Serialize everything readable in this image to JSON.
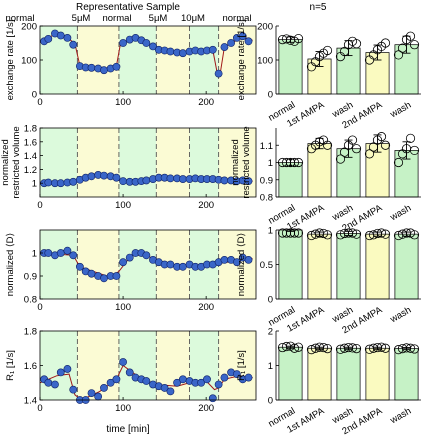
{
  "figure": {
    "left_title": "Representative Sample",
    "right_title": "n=5",
    "phase_labels": [
      "normal",
      "5μM",
      "normal",
      "5μM",
      "10μM",
      "normal"
    ],
    "left_xlabel": "time [min]"
  },
  "colors": {
    "normal_band": "#dcfadc",
    "ampa_band": "#fbfbd4",
    "marker_fill": "#3a66c8",
    "marker_edge": "#0d1f66",
    "fit_line": "#a01818",
    "divider": "#555555",
    "bar_green": "#c6f2c6",
    "bar_yellow": "#fafac0"
  },
  "chart_data": [
    {
      "type": "scatter",
      "ylabel": "exchange rate [1/s]",
      "xlim": [
        0,
        260
      ],
      "ylim": [
        0,
        200
      ],
      "xticks": [
        "0",
        "100",
        "200"
      ],
      "xtick_values": [
        0,
        100,
        200
      ],
      "yticks": [
        "0",
        "100",
        "200"
      ],
      "ytick_values": [
        0,
        100,
        200
      ],
      "phase_boundaries": [
        45,
        95,
        140,
        180,
        215
      ],
      "x": [
        5,
        10,
        18,
        25,
        33,
        40,
        48,
        55,
        62,
        70,
        77,
        85,
        92,
        100,
        108,
        115,
        122,
        128,
        136,
        143,
        150,
        157,
        165,
        172,
        180,
        187,
        194,
        201,
        208,
        215,
        222,
        230,
        237,
        244,
        251
      ],
      "y": [
        155,
        162,
        178,
        172,
        165,
        145,
        82,
        78,
        77,
        75,
        70,
        75,
        80,
        150,
        160,
        165,
        158,
        150,
        140,
        130,
        128,
        125,
        122,
        120,
        125,
        128,
        125,
        128,
        130,
        60,
        138,
        150,
        165,
        170,
        155
      ],
      "fit": [
        [
          0,
          152
        ],
        [
          18,
          176
        ],
        [
          33,
          166
        ],
        [
          42,
          148
        ],
        [
          48,
          83
        ],
        [
          85,
          76
        ],
        [
          92,
          82
        ],
        [
          97,
          150
        ],
        [
          115,
          164
        ],
        [
          136,
          141
        ],
        [
          150,
          128
        ],
        [
          172,
          121
        ],
        [
          208,
          129
        ],
        [
          213,
          65
        ],
        [
          217,
          62
        ],
        [
          222,
          138
        ],
        [
          244,
          168
        ],
        [
          256,
          158
        ]
      ]
    },
    {
      "type": "scatter",
      "ylabel": "normalized restricted volume",
      "xlim": [
        0,
        260
      ],
      "ylim": [
        0.8,
        1.8
      ],
      "xticks": [
        "0",
        "100",
        "200"
      ],
      "xtick_values": [
        0,
        100,
        200
      ],
      "yticks": [
        "1",
        "1.2",
        "1.4",
        "1.6",
        "1.8"
      ],
      "ytick_values": [
        1,
        1.2,
        1.4,
        1.6,
        1.8
      ],
      "phase_boundaries": [
        45,
        95,
        140,
        180,
        215
      ],
      "x": [
        5,
        10,
        18,
        25,
        33,
        40,
        48,
        55,
        62,
        70,
        77,
        85,
        92,
        100,
        108,
        115,
        122,
        128,
        136,
        143,
        150,
        157,
        165,
        172,
        180,
        187,
        194,
        201,
        208,
        215,
        222,
        230,
        237,
        244,
        251
      ],
      "y": [
        1.0,
        1.01,
        1.0,
        1.0,
        1.01,
        1.02,
        1.05,
        1.08,
        1.1,
        1.12,
        1.11,
        1.1,
        1.08,
        1.03,
        1.02,
        1.02,
        1.03,
        1.04,
        1.06,
        1.08,
        1.08,
        1.07,
        1.07,
        1.06,
        1.06,
        1.07,
        1.06,
        1.06,
        1.06,
        1.05,
        1.04,
        1.04,
        1.03,
        1.04,
        1.03
      ],
      "fit": [
        [
          0,
          1.0
        ],
        [
          40,
          1.02
        ],
        [
          70,
          1.11
        ],
        [
          95,
          1.04
        ],
        [
          120,
          1.03
        ],
        [
          145,
          1.08
        ],
        [
          180,
          1.06
        ],
        [
          215,
          1.05
        ],
        [
          256,
          1.03
        ]
      ]
    },
    {
      "type": "scatter",
      "ylabel": "normalized ⟨D⟩",
      "xlim": [
        0,
        260
      ],
      "ylim": [
        0.8,
        1.1
      ],
      "xticks": [
        "0",
        "100",
        "200"
      ],
      "xtick_values": [
        0,
        100,
        200
      ],
      "yticks": [
        "0.8",
        "0.9",
        "1"
      ],
      "ytick_values": [
        0.8,
        0.9,
        1.0
      ],
      "phase_boundaries": [
        45,
        95,
        140,
        180,
        215
      ],
      "x": [
        5,
        10,
        18,
        25,
        33,
        40,
        48,
        55,
        62,
        70,
        77,
        85,
        92,
        100,
        108,
        115,
        122,
        128,
        136,
        143,
        150,
        157,
        165,
        172,
        180,
        187,
        194,
        201,
        208,
        215,
        222,
        230,
        237,
        244,
        251
      ],
      "y": [
        1.0,
        1.0,
        0.99,
        1.0,
        1.01,
        0.99,
        0.94,
        0.92,
        0.91,
        0.9,
        0.89,
        0.9,
        0.9,
        0.96,
        0.98,
        1.0,
        1.0,
        0.99,
        0.97,
        0.96,
        0.95,
        0.95,
        0.94,
        0.94,
        0.95,
        0.94,
        0.94,
        0.95,
        0.95,
        0.96,
        0.97,
        0.97,
        0.96,
        0.98,
        0.97
      ],
      "fit": [
        [
          0,
          1.0
        ],
        [
          40,
          0.99
        ],
        [
          48,
          0.94
        ],
        [
          85,
          0.895
        ],
        [
          95,
          0.92
        ],
        [
          110,
          0.99
        ],
        [
          128,
          0.99
        ],
        [
          145,
          0.96
        ],
        [
          172,
          0.94
        ],
        [
          215,
          0.955
        ],
        [
          256,
          0.975
        ]
      ]
    },
    {
      "type": "scatter",
      "ylabel": "R₁ [1/s]",
      "xlim": [
        0,
        260
      ],
      "ylim": [
        1.4,
        1.8
      ],
      "xticks": [
        "0",
        "100",
        "200"
      ],
      "xtick_values": [
        0,
        100,
        200
      ],
      "yticks": [
        "1.4",
        "1.6",
        "1.8"
      ],
      "ytick_values": [
        1.4,
        1.6,
        1.8
      ],
      "phase_boundaries": [
        45,
        95,
        140,
        180,
        215
      ],
      "x": [
        5,
        10,
        18,
        25,
        33,
        40,
        48,
        55,
        62,
        70,
        77,
        85,
        92,
        100,
        108,
        115,
        122,
        128,
        136,
        143,
        150,
        157,
        165,
        172,
        180,
        187,
        194,
        201,
        208,
        215,
        222,
        230,
        237,
        244,
        251
      ],
      "y": [
        1.52,
        1.5,
        1.49,
        1.56,
        1.58,
        1.46,
        1.4,
        1.38,
        1.44,
        1.42,
        1.47,
        1.5,
        1.52,
        1.62,
        1.56,
        1.53,
        1.52,
        1.51,
        1.49,
        1.48,
        1.47,
        1.45,
        1.5,
        1.52,
        1.51,
        1.5,
        1.5,
        1.52,
        1.41,
        1.49,
        1.53,
        1.56,
        1.55,
        1.52,
        1.53
      ],
      "fit": [
        [
          0,
          1.5
        ],
        [
          20,
          1.54
        ],
        [
          35,
          1.55
        ],
        [
          42,
          1.43
        ],
        [
          50,
          1.4
        ],
        [
          72,
          1.45
        ],
        [
          92,
          1.52
        ],
        [
          100,
          1.6
        ],
        [
          120,
          1.53
        ],
        [
          140,
          1.49
        ],
        [
          165,
          1.48
        ],
        [
          180,
          1.5
        ],
        [
          200,
          1.51
        ],
        [
          210,
          1.46
        ],
        [
          215,
          1.47
        ],
        [
          222,
          1.52
        ],
        [
          240,
          1.54
        ],
        [
          256,
          1.53
        ]
      ]
    },
    {
      "type": "bar",
      "ylabel": "exchange rate [1/s]",
      "categories": [
        "normal",
        "1st AMPA",
        "wash",
        "2nd AMPA",
        "wash"
      ],
      "values": [
        160,
        103,
        135,
        122,
        145
      ],
      "errors": [
        8,
        22,
        22,
        22,
        25
      ],
      "points": [
        [
          160,
          162,
          158,
          155,
          163
        ],
        [
          80,
          95,
          110,
          120,
          128
        ],
        [
          110,
          125,
          145,
          155,
          148
        ],
        [
          100,
          115,
          130,
          140,
          150
        ],
        [
          115,
          135,
          160,
          170,
          145
        ]
      ],
      "ylim": [
        0,
        200
      ],
      "yticks": [
        "0",
        "100",
        "200"
      ],
      "ytick_values": [
        0,
        100,
        200
      ]
    },
    {
      "type": "bar",
      "ylabel": "normalized restricted volume",
      "categories": [
        "normal",
        "1st AMPA",
        "wash",
        "2nd AMPA",
        "wash"
      ],
      "values": [
        1.0,
        1.11,
        1.08,
        1.11,
        1.07
      ],
      "errors": [
        0.02,
        0.03,
        0.05,
        0.05,
        0.05
      ],
      "points": [
        [
          1.0,
          1.0,
          1.0,
          1.0,
          1.0
        ],
        [
          1.08,
          1.1,
          1.12,
          1.13,
          1.1
        ],
        [
          1.02,
          1.06,
          1.1,
          1.13,
          1.08
        ],
        [
          1.05,
          1.09,
          1.13,
          1.15,
          1.1
        ],
        [
          1.0,
          1.05,
          1.08,
          1.14,
          1.07
        ]
      ],
      "ylim": [
        0.8,
        1.2
      ],
      "yticks": [
        "0.8",
        "0.9",
        "1",
        "1.1"
      ],
      "ytick_values": [
        0.8,
        0.9,
        1.0,
        1.1
      ]
    },
    {
      "type": "bar",
      "ylabel": "normalized ⟨D⟩",
      "categories": [
        "normal",
        "1st AMPA",
        "wash",
        "2nd AMPA",
        "wash"
      ],
      "values": [
        1.0,
        0.94,
        0.95,
        0.94,
        0.94
      ],
      "errors": [
        0.02,
        0.03,
        0.03,
        0.03,
        0.03
      ],
      "points": [
        [
          1.0,
          1.01,
          1.02,
          0.99,
          1.0
        ],
        [
          0.92,
          0.94,
          0.96,
          0.95,
          0.93
        ],
        [
          0.93,
          0.95,
          0.97,
          0.96,
          0.94
        ],
        [
          0.92,
          0.93,
          0.95,
          0.96,
          0.94
        ],
        [
          0.92,
          0.94,
          0.96,
          0.97,
          0.93
        ]
      ],
      "ylim": [
        0,
        1
      ],
      "yticks": [
        "0",
        "0.5",
        "1"
      ],
      "ytick_values": [
        0,
        0.5,
        1
      ]
    },
    {
      "type": "bar",
      "ylabel": "R₁ [1/s]",
      "categories": [
        "normal",
        "1st AMPA",
        "wash",
        "2nd AMPA",
        "wash"
      ],
      "values": [
        1.53,
        1.5,
        1.5,
        1.5,
        1.49
      ],
      "errors": [
        0.03,
        0.03,
        0.03,
        0.03,
        0.03
      ],
      "points": [
        [
          1.52,
          1.55,
          1.56,
          1.5,
          1.53
        ],
        [
          1.46,
          1.5,
          1.53,
          1.52,
          1.49
        ],
        [
          1.47,
          1.5,
          1.52,
          1.51,
          1.49
        ],
        [
          1.47,
          1.5,
          1.52,
          1.53,
          1.5
        ],
        [
          1.46,
          1.49,
          1.51,
          1.5,
          1.48
        ]
      ],
      "ylim": [
        0,
        2
      ],
      "yticks": [
        "0",
        "1",
        "2"
      ],
      "ytick_values": [
        0,
        1,
        2
      ]
    }
  ]
}
